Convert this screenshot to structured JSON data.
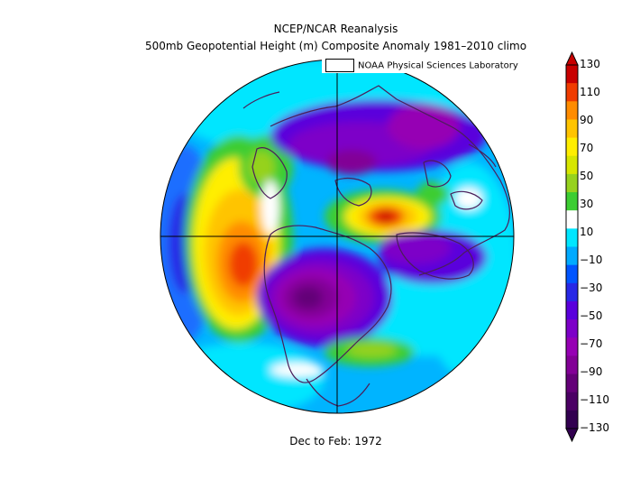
{
  "title": "NCEP/NCAR Reanalysis",
  "subtitle": "500mb Geopotential Height (m) Composite Anomaly 1981–2010 climo",
  "credit": "NOAA Physical Sciences Laboratory",
  "footer": "Dec to Feb: 1972",
  "colorbar": {
    "labels": [
      "130",
      "110",
      "90",
      "70",
      "50",
      "30",
      "10",
      "−10",
      "−30",
      "−50",
      "−70",
      "−90",
      "−110",
      "−130"
    ],
    "colors": [
      "#c80000",
      "#f03c00",
      "#ff8c00",
      "#ffc400",
      "#ffee00",
      "#d7e600",
      "#96d21e",
      "#3ccd32",
      "#ffffff",
      "#00e6ff",
      "#00aaff",
      "#0055ff",
      "#2828e6",
      "#5a00dc",
      "#7d00c8",
      "#9600b4",
      "#820096",
      "#640078",
      "#4b0064",
      "#320050"
    ]
  },
  "icons": [
    "map-projection",
    "triangle-up",
    "triangle-down"
  ]
}
